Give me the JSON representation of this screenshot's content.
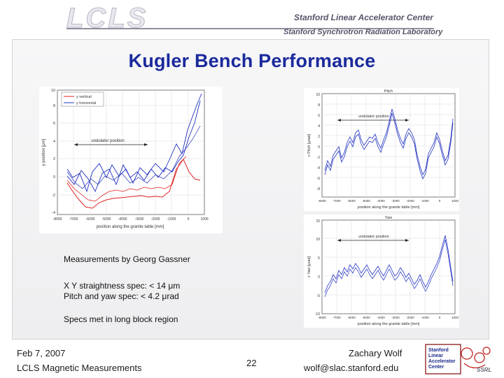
{
  "header": {
    "logo": "LCLS",
    "line1": "Stanford Linear Accelerator Center",
    "line2": "Stanford Synchrotron Radiation Laboratory"
  },
  "slide": {
    "title": "Kugler Bench Performance",
    "notes": [
      "Measurements by Georg Gassner",
      "X Y straightness spec: < 14 μm",
      "Pitch and yaw spec: < 4.2 μrad",
      "Specs met in long block region"
    ]
  },
  "figures": {
    "main": {
      "legend": [
        "y vertical",
        "y horizontal"
      ],
      "ylabel": "y position [μm]",
      "xlabel": "position along the granite table [mm]",
      "annotation": "undulator position",
      "yticks": [
        "10",
        "8",
        "6",
        "4",
        "2",
        "0",
        "-2",
        "-4"
      ],
      "xticks": [
        "-8000",
        "-7000",
        "-6000",
        "-5000",
        "-4000",
        "-3000",
        "-2000",
        "-1000",
        "0",
        "1000"
      ],
      "colors": {
        "vertical": "#e02020",
        "horizontal": "#2030c0"
      }
    },
    "pitch": {
      "title": "Pitch",
      "ylabel": "x Pitch [μrad]",
      "xlabel": "position along the granite table [mm]",
      "annotation": "undulator position",
      "yticks": [
        "10",
        "8",
        "6",
        "4",
        "2",
        "0",
        "-2",
        "-4",
        "-6",
        "-8"
      ],
      "xticks": [
        "-8000",
        "-7000",
        "-6000",
        "-5000",
        "-4000",
        "-3000",
        "-2000",
        "-1000",
        "0",
        "1000"
      ],
      "color": "#2030c0"
    },
    "yaw": {
      "title": "Yaw",
      "ylabel": "z Yaw [μrad]",
      "xlabel": "position along the granite table [mm]",
      "annotation": "undulator position",
      "yticks": [
        "15",
        "10",
        "5",
        "0",
        "-5",
        "-10"
      ],
      "xticks": [
        "-8000",
        "-7000",
        "-6000",
        "-5000",
        "-4000",
        "-3000",
        "-2000",
        "-1000",
        "0",
        "1000"
      ],
      "color": "#2030c0"
    }
  },
  "footer": {
    "date": "Feb 7, 2007",
    "subtitle": "LCLS Magnetic Measurements",
    "page": "22",
    "author": "Zachary Wolf",
    "email": "wolf@slac.stanford.edu"
  },
  "footer_logo": {
    "lines": [
      "Stanford",
      "Linear",
      "Accelerator",
      "Center"
    ],
    "mark": "SSRL"
  }
}
